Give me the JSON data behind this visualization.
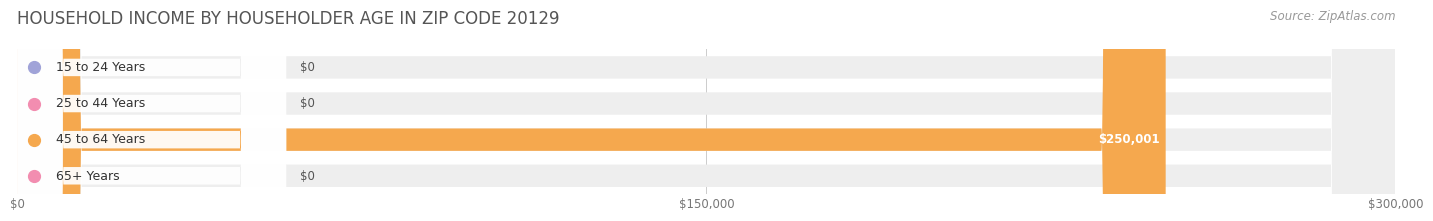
{
  "title": "HOUSEHOLD INCOME BY HOUSEHOLDER AGE IN ZIP CODE 20129",
  "source": "Source: ZipAtlas.com",
  "categories": [
    "15 to 24 Years",
    "25 to 44 Years",
    "45 to 64 Years",
    "65+ Years"
  ],
  "values": [
    0,
    0,
    250001,
    0
  ],
  "bar_colors": [
    "#a0a3d8",
    "#f28db0",
    "#f5a84e",
    "#f28db0"
  ],
  "track_color": "#eeeeee",
  "xlim": [
    0,
    300000
  ],
  "xtick_values": [
    0,
    150000,
    300000
  ],
  "xtick_labels": [
    "$0",
    "$150,000",
    "$300,000"
  ],
  "value_labels": [
    "$0",
    "$0",
    "$250,001",
    "$0"
  ],
  "background_color": "#ffffff",
  "title_fontsize": 12,
  "source_fontsize": 8.5,
  "bar_height": 0.62,
  "bar_label_fontsize": 9,
  "value_label_fontsize": 8.5
}
